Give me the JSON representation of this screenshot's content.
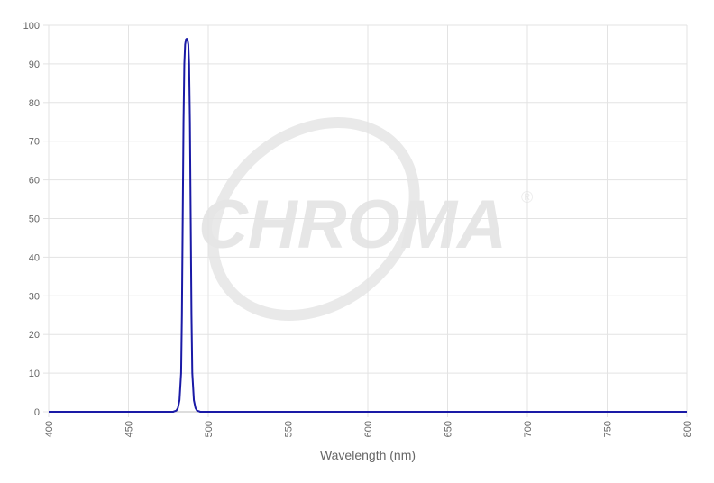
{
  "chart_data": {
    "type": "line",
    "title": "",
    "xlabel": "Wavelength (nm)",
    "ylabel": "",
    "xlim": [
      400,
      800
    ],
    "ylim": [
      0,
      100
    ],
    "xticks": [
      400,
      450,
      500,
      550,
      600,
      650,
      700,
      750,
      800
    ],
    "yticks": [
      0,
      10,
      20,
      30,
      40,
      50,
      60,
      70,
      80,
      90,
      100
    ],
    "grid": true,
    "series": [
      {
        "color": "#1a1aa6",
        "x": [
          400,
          478,
          480,
          481,
          482,
          483,
          483.5,
          484,
          484.5,
          485,
          485.5,
          486,
          486.5,
          487,
          487.5,
          488,
          488.5,
          489,
          489.5,
          490,
          491,
          492,
          493,
          495,
          800
        ],
        "y": [
          0,
          0,
          0.3,
          1,
          3,
          10,
          25,
          50,
          75,
          90,
          95,
          96.3,
          96.5,
          96.3,
          95,
          90,
          75,
          50,
          25,
          10,
          3,
          1,
          0.3,
          0,
          0
        ]
      }
    ],
    "watermark": "CHROMA®"
  }
}
